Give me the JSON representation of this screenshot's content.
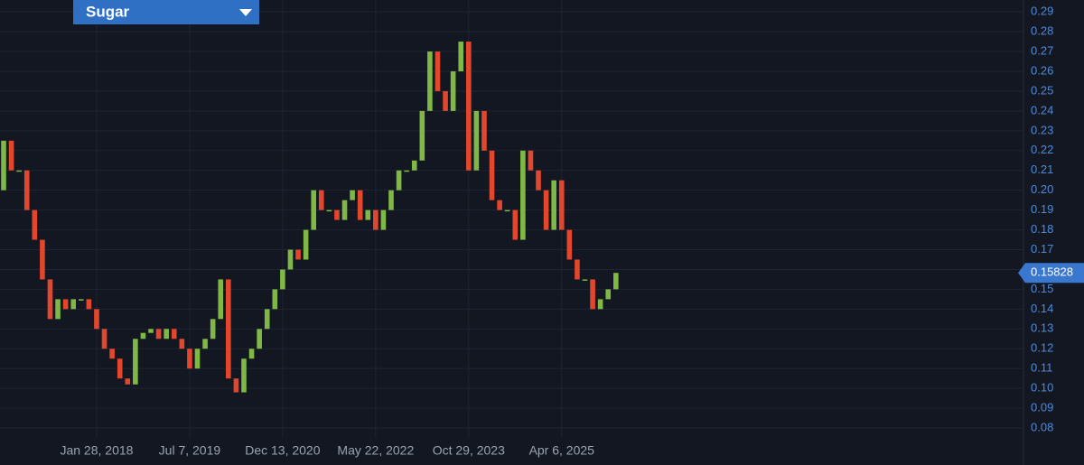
{
  "chart_data": {
    "type": "candlestick",
    "title": "Sugar",
    "categories": [
      null,
      null,
      null,
      null,
      null,
      null,
      null,
      null,
      null,
      null,
      null,
      null,
      "Jan 28, 2018",
      null,
      null,
      null,
      null,
      null,
      null,
      null,
      null,
      null,
      null,
      null,
      "Jul 7, 2019",
      null,
      null,
      null,
      null,
      null,
      null,
      null,
      null,
      null,
      null,
      null,
      "Dec 13, 2020",
      null,
      null,
      null,
      null,
      null,
      null,
      null,
      null,
      null,
      null,
      null,
      "May 22, 2022",
      null,
      null,
      null,
      null,
      null,
      null,
      null,
      null,
      null,
      null,
      null,
      "Oct 29, 2023",
      null,
      null,
      null,
      null,
      null,
      null,
      null,
      null,
      null,
      null,
      null,
      "Apr 6, 2025",
      null,
      null,
      null,
      null,
      null,
      null,
      null
    ],
    "open": [
      0.2,
      0.225,
      0.21,
      0.21,
      0.19,
      0.175,
      0.155,
      0.135,
      0.145,
      0.14,
      0.145,
      0.145,
      0.14,
      0.13,
      0.12,
      0.115,
      0.105,
      0.102,
      0.125,
      0.128,
      0.13,
      0.125,
      0.13,
      0.125,
      0.12,
      0.11,
      0.12,
      0.125,
      0.135,
      0.155,
      0.105,
      0.098,
      0.115,
      0.12,
      0.13,
      0.14,
      0.15,
      0.16,
      0.17,
      0.165,
      0.18,
      0.2,
      0.19,
      0.19,
      0.185,
      0.195,
      0.2,
      0.185,
      0.19,
      0.18,
      0.19,
      0.2,
      0.21,
      0.21,
      0.215,
      0.24,
      0.27,
      0.25,
      0.24,
      0.26,
      0.275,
      0.21,
      0.24,
      0.22,
      0.195,
      0.19,
      0.19,
      0.175,
      0.22,
      0.21,
      0.2,
      0.18,
      0.205,
      0.18,
      0.165,
      0.155,
      0.155,
      0.14,
      0.145,
      0.15
    ],
    "close": [
      0.225,
      0.21,
      0.21,
      0.19,
      0.175,
      0.155,
      0.135,
      0.145,
      0.14,
      0.145,
      0.145,
      0.14,
      0.13,
      0.12,
      0.115,
      0.105,
      0.102,
      0.125,
      0.128,
      0.13,
      0.125,
      0.13,
      0.125,
      0.12,
      0.11,
      0.12,
      0.125,
      0.135,
      0.155,
      0.105,
      0.098,
      0.115,
      0.12,
      0.13,
      0.14,
      0.15,
      0.16,
      0.17,
      0.165,
      0.18,
      0.2,
      0.19,
      0.19,
      0.185,
      0.195,
      0.2,
      0.185,
      0.19,
      0.18,
      0.19,
      0.2,
      0.21,
      0.21,
      0.215,
      0.24,
      0.27,
      0.25,
      0.24,
      0.26,
      0.275,
      0.21,
      0.24,
      0.22,
      0.195,
      0.19,
      0.19,
      0.175,
      0.22,
      0.21,
      0.2,
      0.18,
      0.205,
      0.18,
      0.165,
      0.155,
      0.155,
      0.14,
      0.145,
      0.15,
      0.15828
    ],
    "up_color": "#7fb845",
    "down_color": "#e2472e",
    "ylim": [
      0.075,
      0.296
    ],
    "yticks": [
      0.08,
      0.09,
      {
        "value": 0.1,
        "label": "0.10"
      },
      0.11,
      0.12,
      0.13,
      0.14,
      0.15,
      0.16,
      0.17,
      0.18,
      0.19,
      {
        "value": 0.2,
        "label": "0.20"
      },
      0.21,
      0.22,
      0.23,
      0.24,
      0.25,
      0.26,
      0.27,
      0.28,
      0.29
    ],
    "grid": true
  }
}
